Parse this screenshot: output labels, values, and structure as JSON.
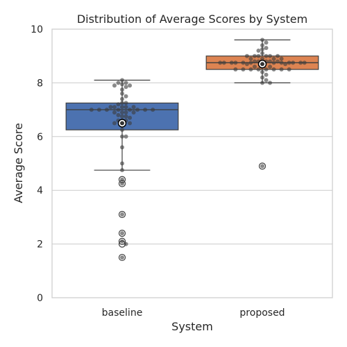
{
  "chart_data": {
    "type": "box",
    "title": "Distribution of Average Scores by System",
    "xlabel": "System",
    "ylabel": "Average Score",
    "ylim": [
      0,
      10
    ],
    "yticks": [
      0,
      2,
      4,
      6,
      8,
      10
    ],
    "grid": true,
    "categories": [
      "baseline",
      "proposed"
    ],
    "colors": {
      "baseline": "#4c72b0",
      "proposed": "#dd8452"
    },
    "boxes": [
      {
        "name": "baseline",
        "whisker_low": 4.75,
        "q1": 6.25,
        "median": 7.0,
        "q3": 7.25,
        "whisker_high": 8.1,
        "mean": 6.5,
        "outliers": [
          4.4,
          4.25,
          3.1,
          2.4,
          2.1,
          2.0,
          1.5
        ]
      },
      {
        "name": "proposed",
        "whisker_low": 8.0,
        "q1": 8.5,
        "median": 8.75,
        "q3": 9.0,
        "whisker_high": 9.6,
        "mean": 8.7,
        "outliers": [
          4.9
        ]
      }
    ],
    "points": {
      "baseline": [
        8.1,
        8.0,
        8.0,
        7.95,
        7.9,
        7.9,
        7.85,
        7.75,
        7.6,
        7.5,
        7.4,
        7.25,
        7.25,
        7.2,
        7.1,
        7.1,
        7.1,
        7.1,
        7.1,
        7.0,
        7.0,
        7.0,
        7.0,
        7.0,
        7.0,
        7.0,
        7.0,
        6.9,
        6.9,
        6.9,
        6.9,
        6.8,
        6.75,
        6.75,
        6.7,
        6.6,
        6.6,
        6.6,
        6.5,
        6.5,
        6.4,
        6.25,
        6.0,
        6.0,
        5.6,
        5.0,
        4.75,
        4.4,
        4.25,
        3.1,
        2.4,
        2.1,
        2.0,
        1.5
      ],
      "proposed": [
        9.6,
        9.5,
        9.4,
        9.3,
        9.25,
        9.2,
        9.1,
        9.0,
        9.0,
        9.0,
        9.0,
        9.0,
        9.0,
        8.9,
        8.9,
        8.9,
        8.9,
        8.8,
        8.8,
        8.8,
        8.8,
        8.8,
        8.75,
        8.75,
        8.75,
        8.75,
        8.75,
        8.75,
        8.75,
        8.75,
        8.75,
        8.75,
        8.75,
        8.75,
        8.75,
        8.7,
        8.7,
        8.6,
        8.6,
        8.6,
        8.5,
        8.5,
        8.5,
        8.5,
        8.5,
        8.5,
        8.5,
        8.5,
        8.4,
        8.3,
        8.2,
        8.1,
        8.0,
        8.0,
        4.9
      ]
    }
  }
}
